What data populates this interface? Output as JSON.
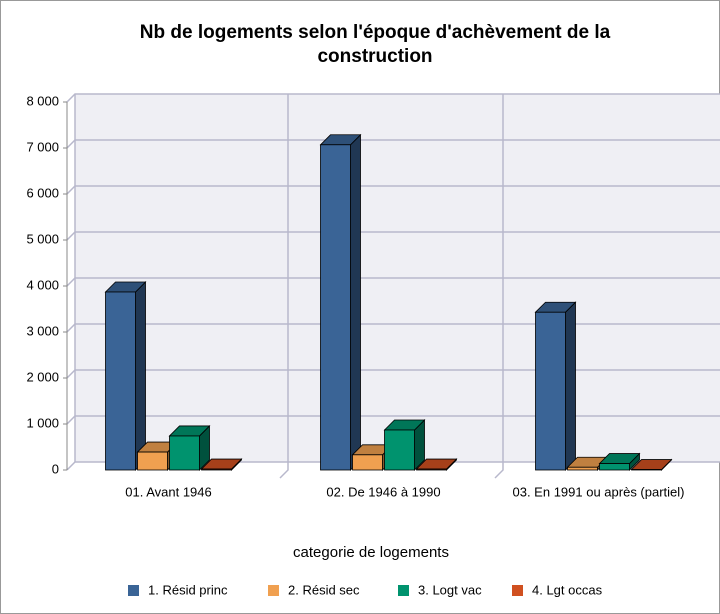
{
  "chart_data": {
    "type": "bar",
    "title": "Nb de logements selon l'époque d'achèvement de la construction",
    "x_label": "categorie de logements",
    "categories": [
      "01. Avant 1946",
      "02. De 1946 à 1990",
      "03. En 1991 ou après (partiel)"
    ],
    "series": [
      {
        "name": "1. Résid princ",
        "color": "#3a6496",
        "values": [
          3870,
          7070,
          3430
        ]
      },
      {
        "name": "2. Résid sec",
        "color": "#f0a050",
        "values": [
          390,
          330,
          60
        ]
      },
      {
        "name": "3. Logt vac",
        "color": "#00936e",
        "values": [
          740,
          870,
          140
        ]
      },
      {
        "name": "4. Lgt occas",
        "color": "#d05020",
        "values": [
          20,
          20,
          10
        ]
      }
    ],
    "ylim": [
      0,
      8000
    ],
    "yticks": [
      0,
      {
        "value": 1000,
        "label": "1 000"
      },
      {
        "value": 2000,
        "label": "2 000"
      },
      {
        "value": 3000,
        "label": "3 000"
      },
      {
        "value": 4000,
        "label": "4 000"
      },
      {
        "value": 5000,
        "label": "5 000"
      },
      {
        "value": 6000,
        "label": "6 000"
      },
      {
        "value": 7000,
        "label": "7 000"
      },
      {
        "value": 8000,
        "label": "8 000"
      }
    ],
    "grid": true,
    "legend": "bottom"
  }
}
